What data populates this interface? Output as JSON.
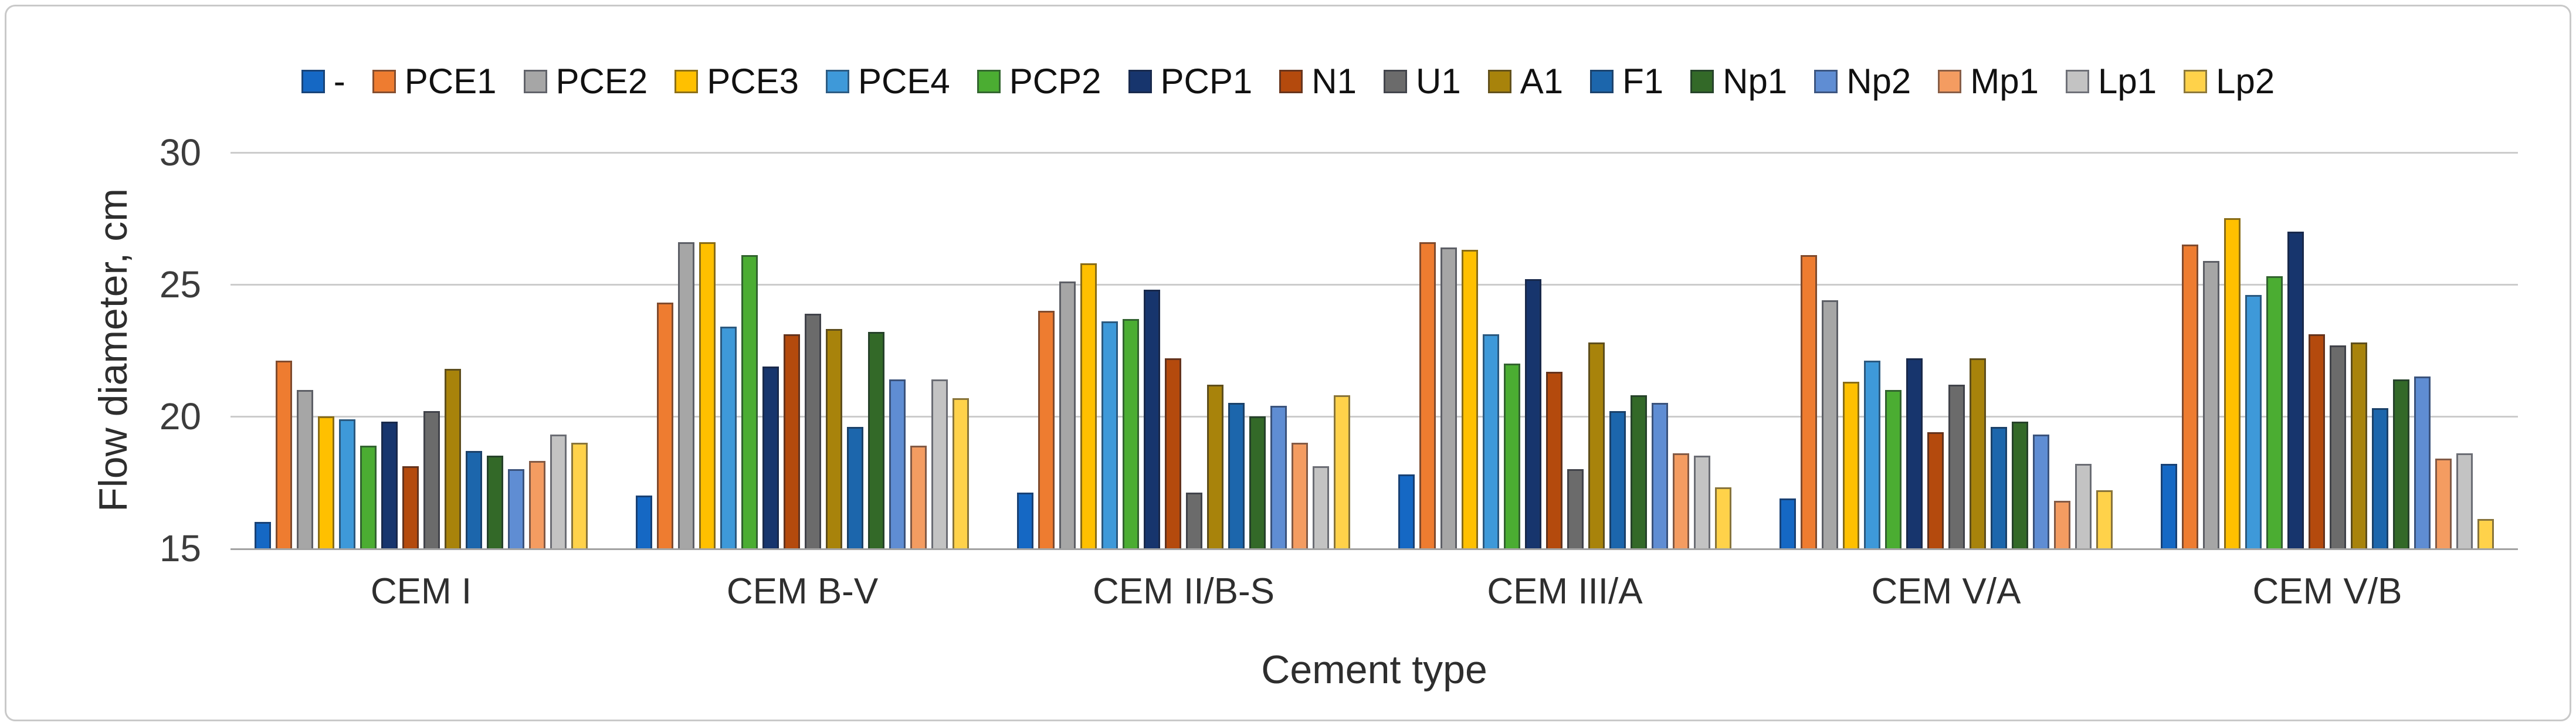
{
  "figure": {
    "background": "#ffffff",
    "border_color": "#c9c9c9"
  },
  "chart_data": {
    "type": "bar",
    "title": "",
    "ylabel": "Flow diameter, cm",
    "xlabel": "Cement type",
    "ylim": [
      15,
      30
    ],
    "yticks": [
      15,
      20,
      25,
      30
    ],
    "grid": "horizontal",
    "legend_position": "top",
    "gridline_color": "#cccccc",
    "axis_line_color": "#a3a3a3",
    "categories": [
      "CEM I",
      "CEM B-V",
      "CEM II/B-S",
      "CEM III/A",
      "CEM V/A",
      "CEM V/B"
    ],
    "series": [
      {
        "name": "-",
        "color": "#1568C4",
        "values": [
          16.0,
          17.0,
          17.1,
          17.8,
          16.9,
          18.2
        ]
      },
      {
        "name": "PCE1",
        "color": "#EE7C30",
        "values": [
          22.1,
          24.3,
          24.0,
          26.6,
          26.1,
          26.5
        ]
      },
      {
        "name": "PCE2",
        "color": "#A6A6A6",
        "values": [
          21.0,
          26.6,
          25.1,
          26.4,
          24.4,
          25.9
        ]
      },
      {
        "name": "PCE3",
        "color": "#FFC000",
        "values": [
          20.0,
          26.6,
          25.8,
          26.3,
          21.3,
          27.5
        ]
      },
      {
        "name": "PCE4",
        "color": "#3E99D9",
        "values": [
          19.9,
          23.4,
          23.6,
          23.1,
          22.1,
          24.6
        ]
      },
      {
        "name": "PCP2",
        "color": "#4BAD32",
        "values": [
          18.9,
          26.1,
          23.7,
          22.0,
          21.0,
          25.3
        ]
      },
      {
        "name": "PCP1",
        "color": "#17356D",
        "values": [
          19.8,
          21.9,
          24.8,
          25.2,
          22.2,
          27.0
        ]
      },
      {
        "name": "N1",
        "color": "#B44A0D",
        "values": [
          18.1,
          23.1,
          22.2,
          21.7,
          19.4,
          23.1
        ]
      },
      {
        "name": "U1",
        "color": "#6B6B6B",
        "values": [
          20.2,
          23.9,
          17.1,
          18.0,
          21.2,
          22.7
        ]
      },
      {
        "name": "A1",
        "color": "#A8830B",
        "values": [
          21.8,
          23.3,
          21.2,
          22.8,
          22.2,
          22.8
        ]
      },
      {
        "name": "F1",
        "color": "#1C66AC",
        "values": [
          18.7,
          19.6,
          20.5,
          20.2,
          19.6,
          20.3
        ]
      },
      {
        "name": "Np1",
        "color": "#336928",
        "values": [
          18.5,
          23.2,
          20.0,
          20.8,
          19.8,
          21.4
        ]
      },
      {
        "name": "Np2",
        "color": "#5F8DD3",
        "values": [
          18.0,
          21.4,
          20.4,
          20.5,
          19.3,
          21.5
        ]
      },
      {
        "name": "Mp1",
        "color": "#F49C61",
        "values": [
          18.3,
          18.9,
          19.0,
          18.6,
          16.8,
          18.4
        ]
      },
      {
        "name": "Lp1",
        "color": "#C3C3C3",
        "values": [
          19.3,
          21.4,
          18.1,
          18.5,
          18.2,
          18.6
        ]
      },
      {
        "name": "Lp2",
        "color": "#FFD24A",
        "values": [
          19.0,
          20.7,
          20.8,
          17.3,
          17.2,
          16.1
        ]
      }
    ]
  }
}
